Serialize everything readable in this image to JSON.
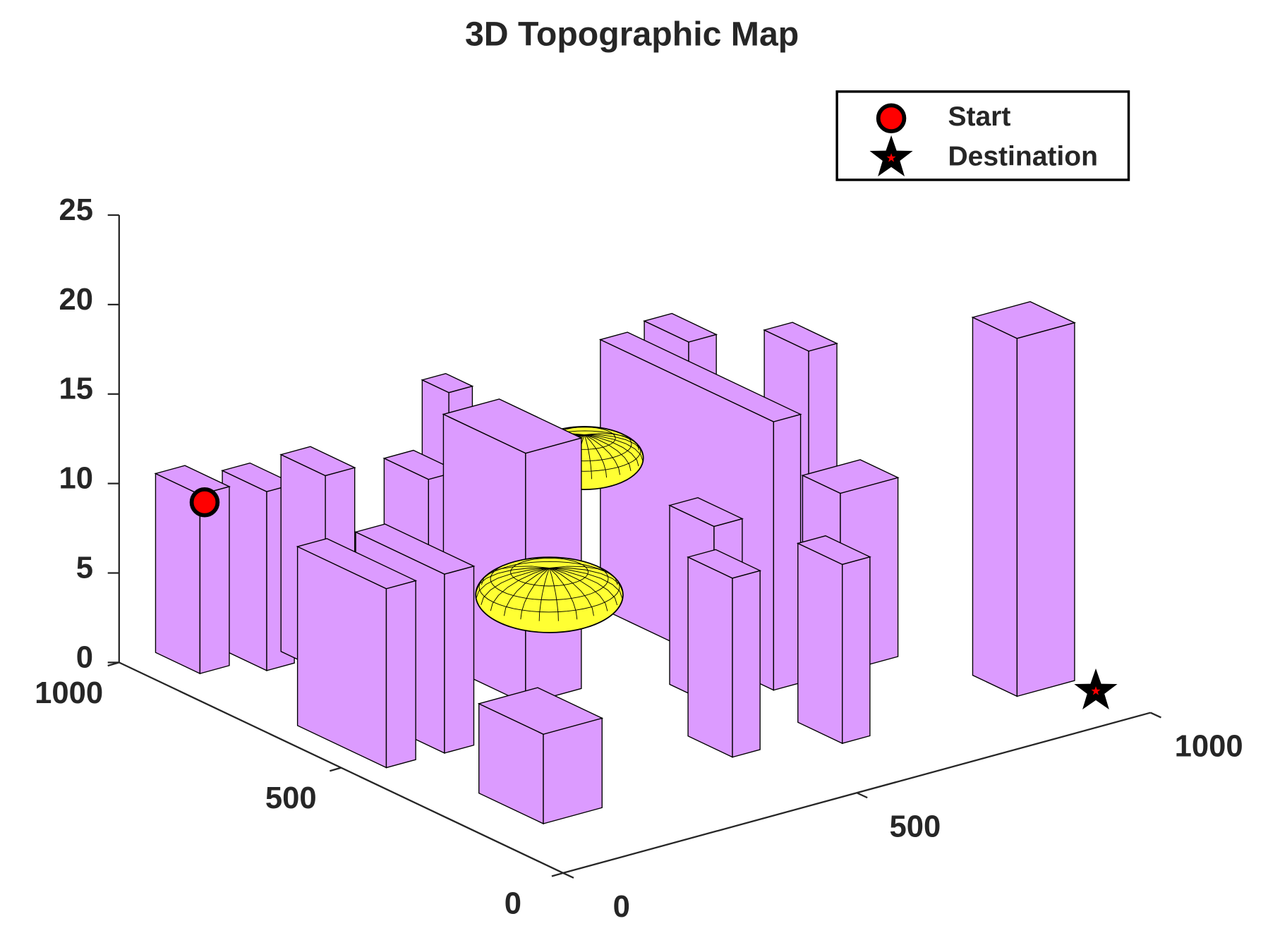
{
  "chart_data": {
    "type": "bar3d",
    "title": "3D Topographic Map",
    "xlim": [
      0,
      1000
    ],
    "ylim": [
      0,
      1000
    ],
    "zlim": [
      0,
      25
    ],
    "xticks": [
      0,
      500,
      1000
    ],
    "yticks": [
      0,
      500,
      1000
    ],
    "zticks": [
      0,
      5,
      10,
      15,
      20,
      25
    ],
    "legend": "northeast",
    "obstacle_color": "#dc9bff",
    "threat_color": "#ffff33",
    "obstacles": [
      {
        "x": [
          62,
          112
        ],
        "y": [
          900,
          1000
        ],
        "height": 10
      },
      {
        "x": [
          141,
          188
        ],
        "y": [
          854,
          954
        ],
        "height": 10
      },
      {
        "x": [
          200,
          250
        ],
        "y": [
          800,
          900
        ],
        "height": 11
      },
      {
        "x": [
          49,
          99
        ],
        "y": [
          463,
          663
        ],
        "height": 10
      },
      {
        "x": [
          145,
          195
        ],
        "y": [
          459,
          659
        ],
        "height": 10
      },
      {
        "x": [
          303,
          353
        ],
        "y": [
          704,
          804
        ],
        "height": 11
      },
      {
        "x": [
          345,
          440
        ],
        "y": [
          541,
          726
        ],
        "height": 14
      },
      {
        "x": [
          380,
          420
        ],
        "y": [
          760,
          820
        ],
        "height": 14.5
      },
      {
        "x": [
          91,
          191
        ],
        "y": [
          165,
          310
        ],
        "height": 5
      },
      {
        "x": [
          644,
          690
        ],
        "y": [
          378,
          768
        ],
        "height": 15
      },
      {
        "x": [
          693,
          740
        ],
        "y": [
          634,
          734
        ],
        "height": 16
      },
      {
        "x": [
          802,
          850
        ],
        "y": [
          508,
          608
        ],
        "height": 16
      },
      {
        "x": [
          757,
          855
        ],
        "y": [
          377,
          462
        ],
        "height": 10
      },
      {
        "x": [
          545,
          593
        ],
        "y": [
          381,
          481
        ],
        "height": 10
      },
      {
        "x": [
          447,
          494
        ],
        "y": [
          210,
          310
        ],
        "height": 10
      },
      {
        "x": [
          597,
          644
        ],
        "y": [
          161,
          261
        ],
        "height": 10
      },
      {
        "x": [
          893,
          991
        ],
        "y": [
          159,
          259
        ],
        "height": 20
      }
    ],
    "threats": [
      {
        "center": [
          415,
          580,
          5
        ],
        "radius": 100,
        "height": 1.5
      },
      {
        "center": [
          520,
          640,
          11
        ],
        "radius": 80,
        "height": 1.3
      }
    ],
    "series": [
      {
        "name": "Start",
        "marker": "circle",
        "color": "#ff0000",
        "x": [
          70
        ],
        "y": [
          900
        ],
        "z": [
          9.5
        ]
      },
      {
        "name": "Destination",
        "marker": "star",
        "color": "#000000",
        "x": [
          990
        ],
        "y": [
          110
        ],
        "z": [
          0
        ]
      }
    ]
  }
}
